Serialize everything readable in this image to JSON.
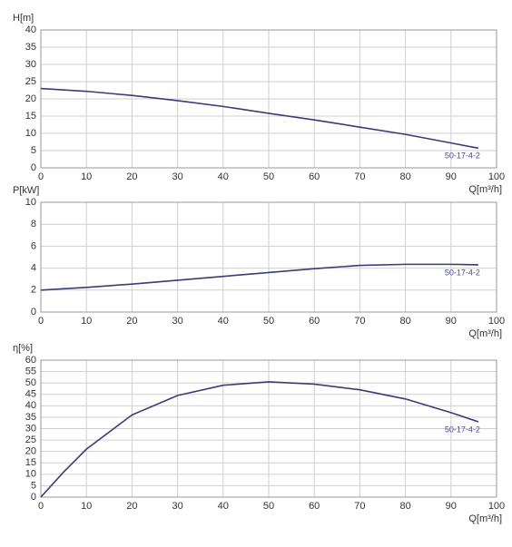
{
  "chart_data": [
    {
      "type": "line",
      "y_label": "H[m]",
      "x_label": "Q[m³/h]",
      "x": [
        0,
        10,
        20,
        30,
        40,
        50,
        60,
        70,
        80,
        90,
        96
      ],
      "series": [
        {
          "name": "50-17-4-2",
          "color": "#3b3b78",
          "values": [
            23,
            22.2,
            21,
            19.5,
            17.8,
            15.8,
            13.9,
            11.8,
            9.7,
            7.2,
            5.7
          ]
        }
      ],
      "xlim": [
        0,
        100
      ],
      "ylim": [
        0,
        40
      ],
      "xticks": [
        0,
        10,
        20,
        30,
        40,
        50,
        60,
        70,
        80,
        90,
        100
      ],
      "yticks": [
        0,
        5,
        10,
        15,
        20,
        25,
        30,
        35,
        40
      ],
      "grid": true
    },
    {
      "type": "line",
      "y_label": "P[kW]",
      "x_label": "Q[m³/h]",
      "x": [
        0,
        10,
        20,
        30,
        40,
        50,
        60,
        70,
        80,
        90,
        96
      ],
      "series": [
        {
          "name": "50-17-4-2",
          "color": "#3b3b78",
          "values": [
            2.0,
            2.25,
            2.55,
            2.9,
            3.25,
            3.6,
            3.95,
            4.25,
            4.35,
            4.35,
            4.3
          ]
        }
      ],
      "xlim": [
        0,
        100
      ],
      "ylim": [
        0,
        10
      ],
      "xticks": [
        0,
        10,
        20,
        30,
        40,
        50,
        60,
        70,
        80,
        90,
        100
      ],
      "yticks": [
        0,
        2,
        4,
        6,
        8,
        10
      ],
      "grid": true
    },
    {
      "type": "line",
      "y_label": "η[%]",
      "x_label": "Q[m³/h]",
      "x": [
        0,
        5,
        10,
        20,
        30,
        40,
        50,
        60,
        70,
        80,
        90,
        96
      ],
      "series": [
        {
          "name": "50-17-4-2",
          "color": "#3b3b78",
          "values": [
            0,
            11,
            21,
            36,
            44.5,
            49,
            50.5,
            49.5,
            47,
            43,
            37,
            33
          ]
        }
      ],
      "xlim": [
        0,
        100
      ],
      "ylim": [
        0,
        60
      ],
      "xticks": [
        0,
        10,
        20,
        30,
        40,
        50,
        60,
        70,
        80,
        90,
        100
      ],
      "yticks": [
        0,
        5,
        10,
        15,
        20,
        25,
        30,
        35,
        40,
        45,
        50,
        55,
        60
      ],
      "grid": true
    }
  ]
}
